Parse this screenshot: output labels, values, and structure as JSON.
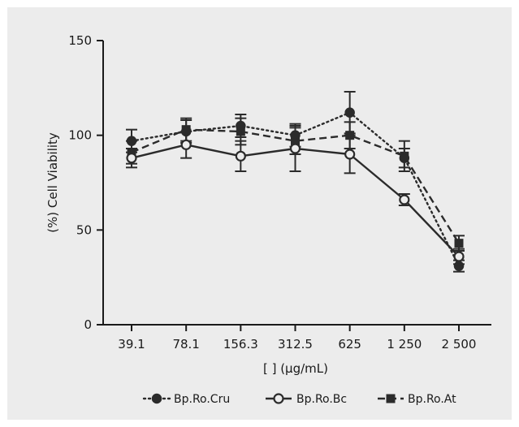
{
  "chart_data": {
    "type": "line",
    "categories": [
      "39.1",
      "78.1",
      "156.3",
      "312.5",
      "625",
      "1 250",
      "2 500"
    ],
    "xlabel": "[ ] (µg/mL)",
    "ylabel": "(%) Cell Viability",
    "ylim": [
      0,
      150
    ],
    "yticks": [
      "0",
      "50",
      "100",
      "150"
    ],
    "legend_position": "bottom",
    "series": [
      {
        "name": "Bp.Ro.Cru",
        "line_style": "dotted",
        "marker": "filled-circle",
        "values": [
          97,
          102,
          105,
          100,
          112,
          88,
          31
        ],
        "errors": [
          6,
          6,
          6,
          6,
          11,
          5,
          3
        ]
      },
      {
        "name": "Bp.Ro.Bc",
        "line_style": "solid",
        "marker": "open-circle",
        "values": [
          88,
          95,
          89,
          93,
          90,
          66,
          36
        ],
        "errors": [
          5,
          7,
          8,
          12,
          10,
          3,
          4
        ]
      },
      {
        "name": "Bp.Ro.At",
        "line_style": "dashed",
        "marker": "filled-square",
        "values": [
          91,
          103,
          102,
          97,
          100,
          89,
          43
        ],
        "errors": [
          6,
          6,
          7,
          7,
          7,
          8,
          4
        ]
      }
    ]
  }
}
